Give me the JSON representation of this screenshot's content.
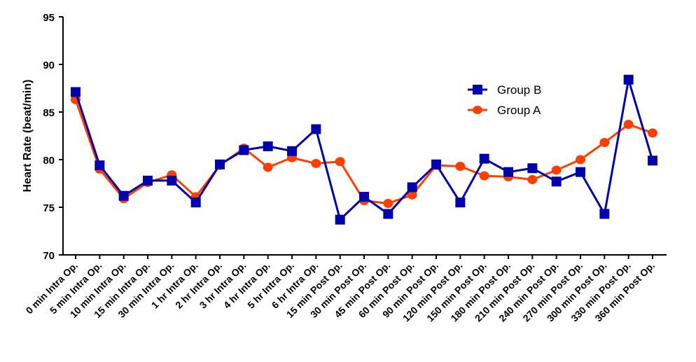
{
  "chart_data": {
    "type": "line",
    "title": "",
    "xlabel": "",
    "ylabel": "Heart Rate (beat/min)",
    "ylim": [
      70,
      95
    ],
    "yticks": [
      70,
      75,
      80,
      85,
      90,
      95
    ],
    "grid": false,
    "legend_position": "top-right",
    "categories": [
      "0 min Intra Op.",
      "5 min Intra Op.",
      "10 min Intra Op.",
      "15 min Intra Op.",
      "30 min Intra Op.",
      "1 hr Intra Op.",
      "2 hr Intra Op.",
      "3 hr Intra Op.",
      "4 hr Intra Op.",
      "5 hr Intra Op.",
      "6 hr Intra Op.",
      "15 min Post Op.",
      "30 min Post Op.",
      "45 min Post Op.",
      "60 min Post Op.",
      "90 min Post Op.",
      "120 min Post Op.",
      "150 min Post Op.",
      "180 min Post Op.",
      "210 min Post Op.",
      "240 min Post Op.",
      "270 min Post Op.",
      "300 min Post Op.",
      "330 min Post Op.",
      "360 min Post Op."
    ],
    "series": [
      {
        "name": "Group B",
        "color": "#0000AA",
        "marker": "square",
        "values": [
          87.1,
          79.4,
          76.2,
          77.8,
          77.8,
          75.5,
          79.5,
          81.0,
          81.4,
          80.9,
          83.2,
          73.7,
          76.1,
          74.3,
          77.1,
          79.5,
          75.5,
          80.1,
          78.7,
          79.1,
          77.7,
          78.7,
          74.3,
          88.4,
          79.9
        ]
      },
      {
        "name": "Group A",
        "color": "#FF3F00",
        "marker": "circle",
        "values": [
          86.3,
          79.0,
          75.9,
          77.6,
          78.4,
          76.1,
          79.4,
          81.2,
          79.2,
          80.2,
          79.6,
          79.8,
          75.7,
          75.4,
          76.3,
          79.4,
          79.3,
          78.3,
          78.2,
          77.9,
          78.9,
          80.0,
          81.8,
          83.7,
          82.8
        ]
      }
    ]
  }
}
